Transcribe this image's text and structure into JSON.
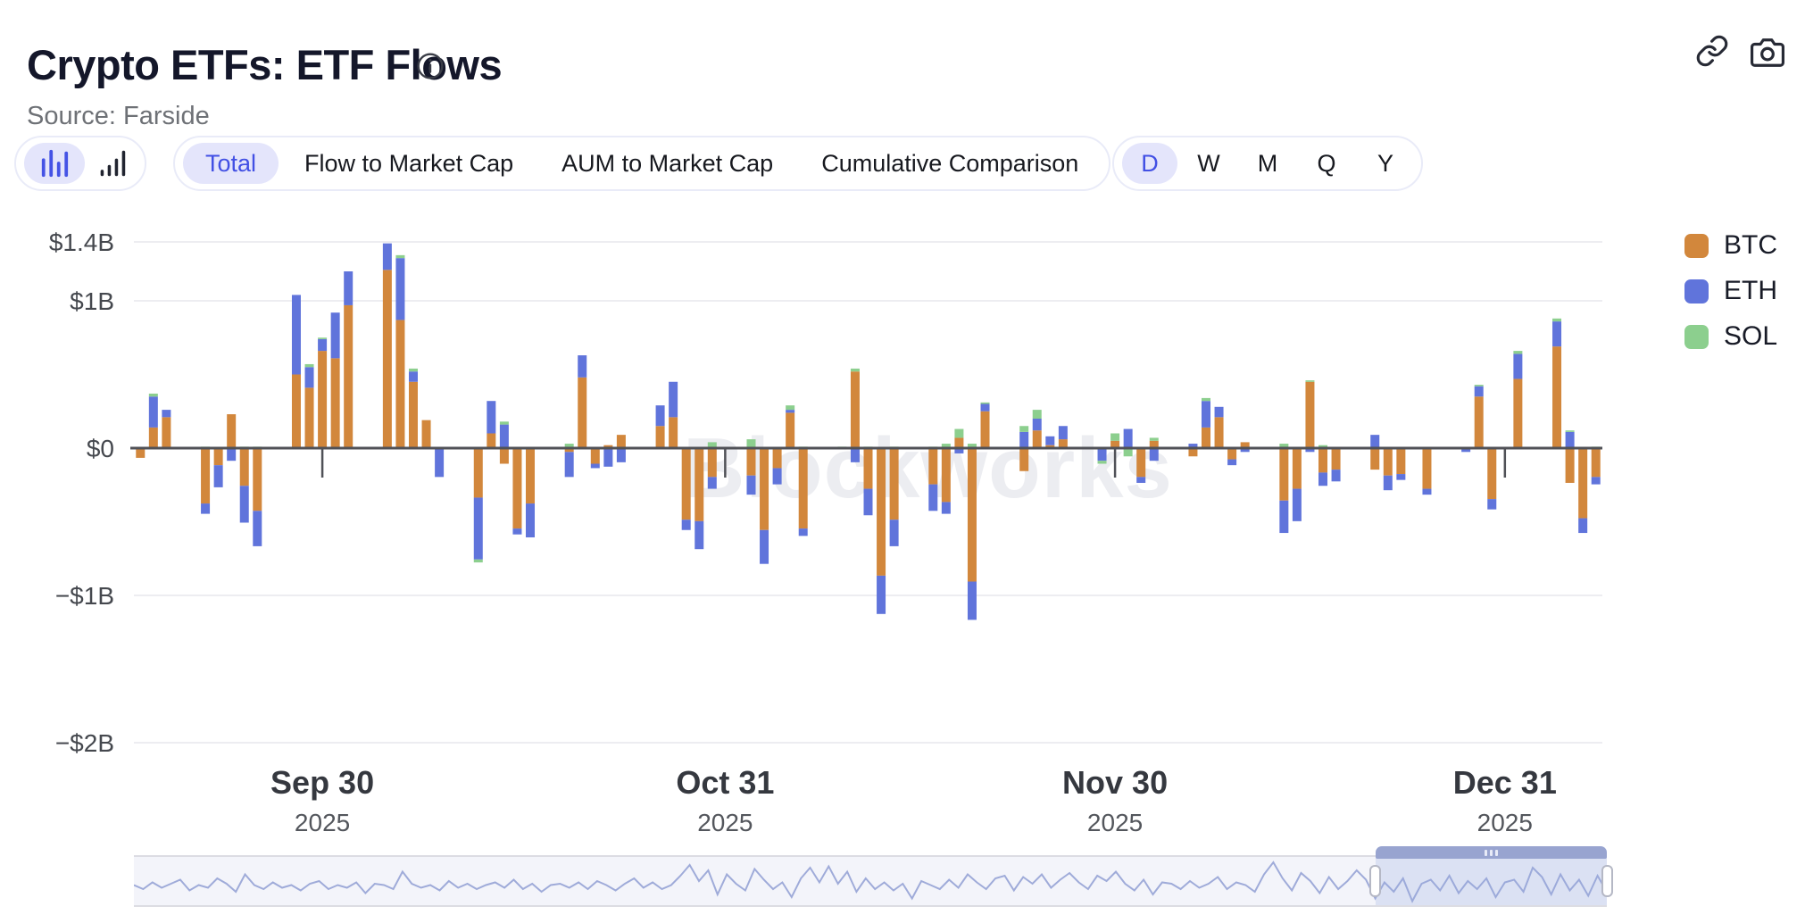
{
  "header": {
    "title": "Crypto ETFs: ETF Flows",
    "source": "Source: Farside"
  },
  "icons": {
    "info": "info-icon",
    "link": "link-icon",
    "camera": "camera-icon",
    "chart_type_1": "bars-distribution-icon",
    "chart_type_2": "bars-ascending-icon"
  },
  "toolbar": {
    "views": [
      "Total",
      "Flow to Market Cap",
      "AUM to Market Cap",
      "Cumulative Comparison"
    ],
    "selected_view": "Total",
    "intervals": [
      "D",
      "W",
      "M",
      "Q",
      "Y"
    ],
    "selected_interval": "D"
  },
  "watermark": "Blockworks",
  "colors": {
    "accent_blue": "#4250e4",
    "selected_pill_bg": "#e4e5fb",
    "btc": "#D2873C",
    "eth": "#6074DB",
    "sol": "#8CCF8E",
    "gridline": "#ededf1",
    "zero_line": "#505157",
    "minimap_line": "#9fabd9",
    "brush_cap": "#98a4d0"
  },
  "chart_data": {
    "type": "stacked_bar",
    "unit": "$B",
    "ylim": [
      -2.08,
      1.5
    ],
    "grid": true,
    "legend_position": "right",
    "series": [
      {
        "name": "BTC",
        "color": "#D2873C"
      },
      {
        "name": "ETH",
        "color": "#6074DB"
      },
      {
        "name": "SOL",
        "color": "#8CCF8E"
      }
    ],
    "y_ticks": [
      {
        "label": "$1.4B",
        "value": 1.4
      },
      {
        "label": "$1B",
        "value": 1.0
      },
      {
        "label": "$0",
        "value": 0
      },
      {
        "label": "−$1B",
        "value": -1.0
      },
      {
        "label": "−$2B",
        "value": -2.0
      }
    ],
    "x_ticks": [
      {
        "label": "Sep 30",
        "year": "2025",
        "slot": 14
      },
      {
        "label": "Oct 31",
        "year": "2025",
        "slot": 45
      },
      {
        "label": "Nov 30",
        "year": "2025",
        "slot": 75
      },
      {
        "label": "Dec 31",
        "year": "2025",
        "slot": 105
      }
    ],
    "days": [
      [
        -0.06,
        0,
        0
      ],
      [
        0.14,
        0.21,
        0.02
      ],
      [
        0.21,
        0.05,
        0
      ],
      [
        0,
        0,
        0
      ],
      [
        0,
        0,
        0
      ],
      [
        -0.37,
        -0.07,
        0.01
      ],
      [
        -0.11,
        -0.15,
        0
      ],
      [
        0.23,
        -0.08,
        0
      ],
      [
        -0.25,
        -0.25,
        0.01
      ],
      [
        -0.42,
        -0.24,
        0.01
      ],
      [
        0,
        0,
        0
      ],
      [
        0,
        0,
        0
      ],
      [
        0.5,
        0.54,
        0
      ],
      [
        0.41,
        0.14,
        0.02
      ],
      [
        0.66,
        0.08,
        0.01
      ],
      [
        0.61,
        0.31,
        0
      ],
      [
        0.97,
        0.23,
        0
      ],
      [
        0,
        0,
        0
      ],
      [
        0,
        0,
        0
      ],
      [
        1.21,
        0.18,
        0
      ],
      [
        0.87,
        0.42,
        0.02
      ],
      [
        0.45,
        0.07,
        0.02
      ],
      [
        0.19,
        0,
        0
      ],
      [
        0,
        -0.19,
        0
      ],
      [
        0,
        0,
        0
      ],
      [
        0,
        0,
        0
      ],
      [
        -0.33,
        -0.42,
        -0.02
      ],
      [
        0.1,
        0.22,
        0
      ],
      [
        -0.1,
        0.16,
        0.02
      ],
      [
        -0.54,
        -0.04,
        0
      ],
      [
        -0.37,
        -0.23,
        0
      ],
      [
        0,
        0,
        0
      ],
      [
        0,
        0,
        0
      ],
      [
        -0.02,
        -0.17,
        0.03
      ],
      [
        0.48,
        0.15,
        0
      ],
      [
        -0.1,
        -0.03,
        0
      ],
      [
        0.02,
        -0.12,
        0
      ],
      [
        0.09,
        -0.09,
        0
      ],
      [
        0,
        0,
        0
      ],
      [
        0,
        0,
        0
      ],
      [
        0.15,
        0.14,
        0
      ],
      [
        0.21,
        0.24,
        0
      ],
      [
        -0.48,
        -0.07,
        0
      ],
      [
        -0.49,
        -0.19,
        0
      ],
      [
        -0.19,
        -0.08,
        0.04
      ],
      [
        0,
        0,
        0
      ],
      [
        0,
        0,
        0
      ],
      [
        -0.18,
        -0.13,
        0.06
      ],
      [
        -0.55,
        -0.23,
        0
      ],
      [
        -0.13,
        -0.11,
        0
      ],
      [
        0.24,
        0.02,
        0.03
      ],
      [
        -0.54,
        -0.05,
        0.01
      ],
      [
        0,
        0,
        0
      ],
      [
        0,
        0,
        0
      ],
      [
        0,
        0,
        0.01
      ],
      [
        0.52,
        -0.09,
        0.02
      ],
      [
        -0.27,
        -0.18,
        0.01
      ],
      [
        -0.86,
        -0.26,
        0
      ],
      [
        -0.48,
        -0.18,
        0.01
      ],
      [
        0,
        0,
        0
      ],
      [
        0,
        0,
        0
      ],
      [
        -0.24,
        -0.18,
        0.01
      ],
      [
        -0.36,
        -0.08,
        0.03
      ],
      [
        0.07,
        -0.03,
        0.06
      ],
      [
        -0.9,
        -0.26,
        0.03
      ],
      [
        0.25,
        0.05,
        0.01
      ],
      [
        0,
        0,
        0
      ],
      [
        0,
        0,
        0
      ],
      [
        -0.15,
        0.11,
        0.04
      ],
      [
        0.12,
        0.08,
        0.06
      ],
      [
        0.02,
        0.06,
        0
      ],
      [
        0.06,
        0.09,
        0
      ],
      [
        0,
        0,
        0
      ],
      [
        0,
        0,
        0
      ],
      [
        0,
        -0.08,
        -0.02
      ],
      [
        0.05,
        0,
        0.05
      ],
      [
        0,
        0.13,
        -0.05
      ],
      [
        -0.19,
        -0.04,
        0
      ],
      [
        0.05,
        -0.08,
        0.02
      ],
      [
        0,
        0,
        0
      ],
      [
        0,
        0,
        0
      ],
      [
        -0.05,
        0.03,
        0
      ],
      [
        0.14,
        0.18,
        0.02
      ],
      [
        0.21,
        0.07,
        0
      ],
      [
        -0.07,
        -0.04,
        0
      ],
      [
        0.04,
        -0.02,
        0
      ],
      [
        0,
        0,
        0
      ],
      [
        0,
        0,
        0
      ],
      [
        -0.35,
        -0.22,
        0.03
      ],
      [
        -0.27,
        -0.22,
        0
      ],
      [
        0.45,
        -0.02,
        0.01
      ],
      [
        -0.16,
        -0.09,
        0.02
      ],
      [
        -0.14,
        -0.08,
        0
      ],
      [
        0,
        0,
        0
      ],
      [
        0,
        0,
        0
      ],
      [
        -0.14,
        0.09,
        0
      ],
      [
        -0.18,
        -0.1,
        0
      ],
      [
        -0.17,
        -0.04,
        0
      ],
      [
        0,
        0,
        0
      ],
      [
        -0.27,
        -0.04,
        0
      ],
      [
        0,
        0,
        0
      ],
      [
        0,
        0,
        0
      ],
      [
        0,
        -0.02,
        0
      ],
      [
        0.35,
        0.07,
        0.01
      ],
      [
        -0.34,
        -0.07,
        0
      ],
      [
        0,
        0,
        0
      ],
      [
        0.47,
        0.17,
        0.02
      ],
      [
        0,
        0,
        0
      ],
      [
        0,
        0,
        0
      ],
      [
        0.69,
        0.17,
        0.02
      ],
      [
        -0.23,
        0.11,
        0.01
      ],
      [
        -0.47,
        -0.1,
        0
      ],
      [
        -0.19,
        -0.05,
        0.01
      ]
    ],
    "minimap": {
      "window": [
        0.843,
        1.0
      ],
      "values": [
        0.1,
        -0.2,
        0.3,
        -0.1,
        0.2,
        0.5,
        -0.3,
        0.1,
        -0.1,
        0.6,
        0.2,
        -0.4,
        0.9,
        0.1,
        -0.2,
        0.3,
        -0.1,
        0.1,
        -0.3,
        0.2,
        0.4,
        -0.2,
        0.1,
        -0.1,
        0.3,
        -0.5,
        0.2,
        0.1,
        -0.2,
        1.1,
        0.2,
        -0.1,
        0.1,
        -0.3,
        0.4,
        -0.1,
        0.2,
        -0.2,
        0.1,
        0.3,
        -0.1,
        0.5,
        -0.2,
        0.2,
        -0.4,
        0.1,
        0.2,
        -0.1,
        0.3,
        -0.2,
        0.4,
        0.1,
        -0.3,
        0.2,
        0.6,
        -0.1,
        0.3,
        -0.2,
        0.1,
        0.8,
        1.6,
        0.4,
        1.2,
        -0.6,
        0.9,
        0.2,
        -0.3,
        1.3,
        0.5,
        -0.2,
        0.3,
        -0.8,
        0.6,
        1.4,
        0.3,
        1.5,
        0.2,
        1.1,
        -0.4,
        0.6,
        -0.2,
        0.3,
        -0.3,
        0.2,
        -0.9,
        0.4,
        0.1,
        -0.2,
        0.5,
        -0.1,
        0.9,
        0.3,
        -0.2,
        0.6,
        0.8,
        -0.3,
        0.7,
        0.2,
        0.9,
        -0.1,
        0.5,
        1.0,
        0.3,
        -0.2,
        0.8,
        0.4,
        1.1,
        0.2,
        -0.3,
        0.5,
        -0.6,
        0.3,
        0.2,
        -0.2,
        0.4,
        -0.1,
        0.2,
        0.7,
        -0.2,
        0.3,
        0.1,
        -0.4,
        0.9,
        1.8,
        0.6,
        -0.3,
        1.0,
        0.4,
        -0.5,
        0.7,
        -0.2,
        0.4,
        1.2,
        0.5,
        -0.9,
        0.3,
        -0.4,
        0.6,
        -1.1,
        0.2,
        0.5,
        -0.3,
        0.8,
        -0.5,
        0.4,
        -0.2,
        0.6,
        -0.8,
        0.3,
        0.5,
        -0.4,
        1.4,
        0.7,
        -0.6,
        0.9,
        -0.3,
        0.5,
        -0.7,
        0.8,
        -0.4
      ]
    }
  }
}
